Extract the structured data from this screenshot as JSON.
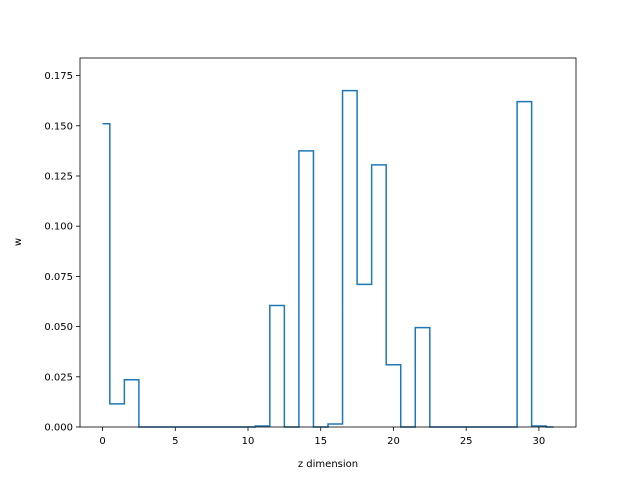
{
  "chart_data": {
    "type": "line",
    "step_style": "steps-mid",
    "title": "",
    "xlabel": "z dimension",
    "ylabel": "w",
    "xlim": [
      -1.55,
      32.55
    ],
    "ylim": [
      0.0,
      0.18375
    ],
    "x_ticks": [
      0,
      5,
      10,
      15,
      20,
      25,
      30
    ],
    "x_tick_labels": [
      "0",
      "5",
      "10",
      "15",
      "20",
      "25",
      "30"
    ],
    "y_ticks": [
      0.0,
      0.025,
      0.05,
      0.075,
      0.1,
      0.125,
      0.15,
      0.175
    ],
    "y_tick_labels": [
      "0.000",
      "0.025",
      "0.050",
      "0.075",
      "0.100",
      "0.125",
      "0.150",
      "0.175"
    ],
    "grid": false,
    "legend": "none",
    "series": [
      {
        "color": "#1f77b4",
        "x": [
          0,
          1,
          2,
          3,
          4,
          5,
          6,
          7,
          8,
          9,
          10,
          11,
          12,
          13,
          14,
          15,
          16,
          17,
          18,
          19,
          20,
          21,
          22,
          23,
          24,
          25,
          26,
          27,
          28,
          29,
          30,
          31
        ],
        "y": [
          0.151,
          0.0115,
          0.0235,
          0.0,
          0.0,
          0.0,
          0.0,
          0.0,
          0.0,
          0.0,
          0.0,
          0.0005,
          0.0605,
          0.0,
          0.1375,
          0.0,
          0.0015,
          0.1675,
          0.071,
          0.1305,
          0.031,
          0.0,
          0.0495,
          0.0,
          0.0,
          0.0,
          0.0,
          0.0,
          0.0,
          0.162,
          0.0005,
          0.0
        ]
      }
    ]
  }
}
